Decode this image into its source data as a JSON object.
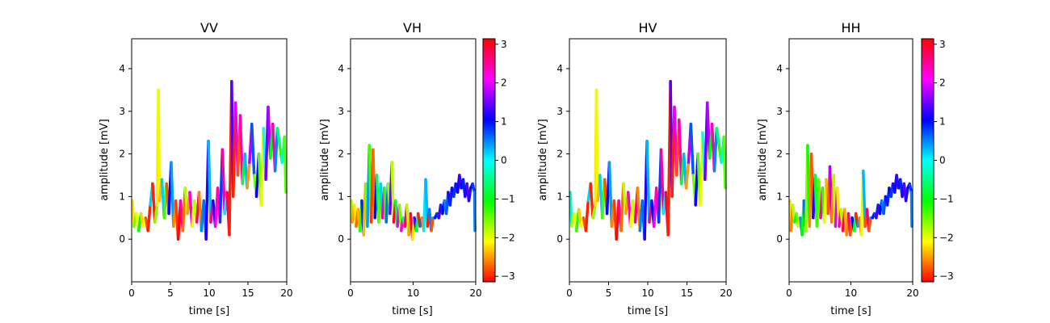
{
  "chart_data": [
    {
      "type": "line",
      "title": "VV",
      "xlabel": "time [s]",
      "ylabel": "amplitude [mV]",
      "xlim": [
        0,
        20
      ],
      "ylim": [
        -1,
        4.7
      ],
      "xticks": [
        "0",
        "5",
        "10",
        "15",
        "20"
      ],
      "yticks": [
        "0",
        "1",
        "2",
        "3",
        "4"
      ],
      "x": [
        0,
        0.3,
        0.6,
        0.9,
        1.2,
        1.5,
        1.8,
        2.1,
        2.4,
        2.7,
        3.0,
        3.3,
        3.45,
        3.6,
        3.9,
        4.2,
        4.5,
        4.8,
        5.1,
        5.4,
        5.7,
        6.0,
        6.3,
        6.6,
        6.9,
        7.2,
        7.5,
        7.8,
        8.1,
        8.4,
        8.7,
        9.0,
        9.3,
        9.6,
        9.9,
        10.2,
        10.5,
        10.8,
        11.1,
        11.4,
        11.7,
        12.0,
        12.3,
        12.6,
        12.9,
        13.1,
        13.4,
        13.7,
        14.0,
        14.3,
        14.6,
        14.9,
        15.2,
        15.5,
        15.8,
        16.1,
        16.4,
        16.7,
        17.0,
        17.3,
        17.6,
        17.9,
        18.2,
        18.5,
        18.8,
        19.1,
        19.4,
        19.7,
        20.0
      ],
      "y": [
        0.9,
        0.3,
        0.6,
        0.2,
        0.6,
        0.3,
        0.5,
        0.2,
        0.8,
        1.3,
        0.4,
        0.8,
        3.5,
        0.9,
        1.4,
        0.5,
        1.3,
        0.6,
        1.8,
        0.3,
        0.9,
        0.0,
        0.9,
        0.2,
        1.2,
        0.6,
        1.1,
        0.3,
        0.9,
        0.4,
        1.1,
        0.2,
        0.9,
        0.0,
        2.3,
        0.4,
        0.9,
        0.3,
        1.2,
        0.4,
        2.1,
        0.6,
        1.1,
        0.1,
        3.7,
        1.0,
        3.2,
        1.5,
        2.9,
        1.3,
        2.0,
        1.2,
        1.8,
        2.7,
        1.5,
        1.0,
        2.0,
        0.8,
        2.6,
        1.4,
        3.1,
        1.9,
        2.7,
        1.6,
        2.6,
        2.2,
        1.8,
        2.4,
        1.1
      ],
      "phase": [
        -2.2,
        -1.5,
        -2.0,
        -1.0,
        -2.3,
        -2.1,
        -2.8,
        -3.0,
        0.2,
        -3.0,
        -1.6,
        -2.2,
        -2.0,
        -2.4,
        0.2,
        -1.3,
        -2.8,
        1.0,
        0.4,
        -2.6,
        -2.9,
        -3.1,
        2.4,
        -2.7,
        -1.8,
        -2.5,
        2.3,
        -2.0,
        -1.8,
        2.6,
        -2.6,
        0.5,
        0.6,
        1.2,
        0.3,
        2.6,
        1.0,
        2.2,
        2.4,
        0.8,
        2.5,
        0.1,
        2.8,
        -3.0,
        1.4,
        -3.0,
        2.0,
        -2.8,
        2.4,
        -0.8,
        0.3,
        -2.5,
        1.8,
        0.7,
        -1.5,
        1.1,
        -1.4,
        -2.0,
        0.0,
        1.5,
        1.8,
        -1.0,
        2.4,
        0.5,
        -0.6,
        -1.2,
        -0.2,
        -1.4,
        -1.0
      ]
    },
    {
      "type": "line",
      "title": "VH",
      "xlabel": "time [s]",
      "ylabel": "amplitude [mV]",
      "xlim": [
        0,
        20
      ],
      "ylim": [
        -1,
        4.7
      ],
      "xticks": [
        "0",
        "10",
        "20"
      ],
      "yticks": [
        "0",
        "1",
        "2",
        "3",
        "4"
      ],
      "x": [
        0,
        0.3,
        0.6,
        0.9,
        1.2,
        1.5,
        1.8,
        2.1,
        2.4,
        2.7,
        3.0,
        3.3,
        3.6,
        3.9,
        4.2,
        4.5,
        4.8,
        5.1,
        5.4,
        5.7,
        6.0,
        6.3,
        6.6,
        6.9,
        7.2,
        7.5,
        7.8,
        8.1,
        8.4,
        8.7,
        9.0,
        9.3,
        9.6,
        9.9,
        10.2,
        10.5,
        10.8,
        11.1,
        11.4,
        11.7,
        12.0,
        12.3,
        12.6,
        12.9,
        13.2,
        13.5,
        13.8,
        14.1,
        14.4,
        14.7,
        15.0,
        15.3,
        15.6,
        15.9,
        16.2,
        16.5,
        16.8,
        17.1,
        17.4,
        17.7,
        18.0,
        18.3,
        18.6,
        18.9,
        19.2,
        19.5,
        19.8,
        20.0
      ],
      "y": [
        0.9,
        0.4,
        0.8,
        0.3,
        0.7,
        0.2,
        0.9,
        0.1,
        1.3,
        0.3,
        2.2,
        0.4,
        2.1,
        0.5,
        1.5,
        0.4,
        1.3,
        0.5,
        1.2,
        0.4,
        1.3,
        0.6,
        1.8,
        0.4,
        0.9,
        0.3,
        0.8,
        0.2,
        0.5,
        0.3,
        0.8,
        0.1,
        0.6,
        0.0,
        0.5,
        0.2,
        0.6,
        0.3,
        0.5,
        0.2,
        1.4,
        0.3,
        0.7,
        0.2,
        0.5,
        0.5,
        0.6,
        0.5,
        0.8,
        0.6,
        0.9,
        0.6,
        1.1,
        0.8,
        1.2,
        1.0,
        1.3,
        1.1,
        1.5,
        1.2,
        1.4,
        1.0,
        1.3,
        0.9,
        1.2,
        1.3,
        1.1,
        0.2
      ],
      "phase": [
        -1.8,
        -2.5,
        -2.2,
        -2.7,
        -2.4,
        -1.2,
        0.9,
        -2.4,
        -1.5,
        0.4,
        -1.3,
        -2.9,
        -2.7,
        1.0,
        -0.7,
        -1.4,
        0.2,
        2.4,
        -1.2,
        0.6,
        -1.6,
        1.5,
        -1.8,
        2.9,
        -0.8,
        2.0,
        -1.5,
        2.3,
        -0.4,
        2.8,
        -1.8,
        -2.5,
        2.8,
        -2.2,
        1.3,
        -0.8,
        -3.0,
        0.6,
        -2.6,
        0.1,
        0.3,
        -3.0,
        0.5,
        -2.8,
        0.4,
        1.0,
        0.8,
        1.3,
        0.9,
        1.1,
        0.5,
        0.7,
        1.2,
        0.9,
        1.0,
        0.8,
        1.2,
        1.1,
        1.3,
        1.0,
        0.9,
        1.2,
        1.4,
        1.2,
        1.1,
        0.8,
        0.5,
        1.0
      ]
    },
    {
      "type": "line",
      "title": "HV",
      "xlabel": "time [s]",
      "ylabel": "amplitude [mV]",
      "xlim": [
        0,
        20
      ],
      "ylim": [
        -1,
        4.7
      ],
      "xticks": [
        "0",
        "5",
        "10",
        "15",
        "20"
      ],
      "yticks": [
        "0",
        "1",
        "2",
        "3",
        "4"
      ],
      "x": [
        0,
        0.3,
        0.6,
        0.9,
        1.2,
        1.5,
        1.8,
        2.1,
        2.4,
        2.7,
        3.0,
        3.3,
        3.45,
        3.6,
        3.9,
        4.2,
        4.5,
        4.8,
        5.1,
        5.4,
        5.7,
        6.0,
        6.3,
        6.6,
        6.9,
        7.2,
        7.5,
        7.8,
        8.1,
        8.4,
        8.7,
        9.0,
        9.3,
        9.6,
        9.9,
        10.2,
        10.5,
        10.8,
        11.1,
        11.4,
        11.7,
        12.0,
        12.3,
        12.6,
        12.9,
        13.1,
        13.4,
        13.7,
        14.0,
        14.3,
        14.6,
        14.9,
        15.2,
        15.5,
        15.8,
        16.1,
        16.4,
        16.7,
        17.0,
        17.3,
        17.6,
        17.9,
        18.2,
        18.5,
        18.8,
        19.1,
        19.4,
        19.7,
        20.0
      ],
      "y": [
        1.1,
        0.3,
        0.6,
        0.2,
        0.7,
        0.3,
        0.5,
        0.2,
        0.9,
        1.3,
        0.5,
        0.8,
        3.5,
        0.9,
        1.5,
        0.5,
        1.4,
        0.6,
        1.8,
        0.3,
        0.9,
        0.0,
        0.9,
        0.2,
        1.3,
        0.6,
        1.1,
        0.3,
        0.9,
        0.4,
        1.2,
        0.2,
        0.9,
        0.0,
        2.3,
        0.4,
        0.9,
        0.3,
        1.2,
        0.4,
        2.1,
        0.6,
        1.1,
        0.1,
        3.7,
        1.0,
        3.1,
        1.5,
        2.8,
        1.3,
        2.0,
        1.2,
        1.8,
        2.7,
        1.5,
        0.8,
        2.0,
        0.8,
        2.5,
        1.4,
        3.2,
        1.9,
        2.7,
        1.6,
        2.6,
        2.2,
        1.8,
        2.4,
        1.2
      ],
      "phase": [
        -0.2,
        -1.8,
        -2.0,
        -1.2,
        -2.3,
        -2.1,
        -2.8,
        -3.0,
        0.2,
        -3.0,
        -1.6,
        -2.2,
        -2.0,
        -2.4,
        0.2,
        -1.3,
        -2.8,
        1.0,
        0.4,
        -2.6,
        -2.9,
        -3.1,
        2.4,
        -2.7,
        -1.8,
        -2.5,
        2.3,
        -2.0,
        -1.8,
        2.6,
        -2.6,
        0.5,
        0.6,
        1.2,
        0.3,
        2.6,
        1.0,
        2.2,
        2.4,
        0.8,
        2.5,
        0.1,
        2.8,
        -3.0,
        1.4,
        -3.0,
        2.0,
        -2.8,
        2.4,
        -0.8,
        0.3,
        -2.5,
        1.8,
        0.7,
        -1.5,
        1.1,
        -1.4,
        -2.0,
        0.0,
        1.5,
        1.8,
        -1.0,
        2.4,
        0.5,
        -0.6,
        -1.2,
        -0.2,
        -1.4,
        -1.0
      ]
    },
    {
      "type": "line",
      "title": "HH",
      "xlabel": "time [s]",
      "ylabel": "amplitude [mV]",
      "xlim": [
        0,
        20
      ],
      "ylim": [
        -1,
        4.7
      ],
      "xticks": [
        "0",
        "10",
        "20"
      ],
      "yticks": [
        "0",
        "1",
        "2",
        "3",
        "4"
      ],
      "x": [
        0,
        0.3,
        0.6,
        0.9,
        1.2,
        1.5,
        1.8,
        2.1,
        2.4,
        2.7,
        3.0,
        3.3,
        3.6,
        3.9,
        4.2,
        4.5,
        4.8,
        5.1,
        5.4,
        5.7,
        6.0,
        6.3,
        6.6,
        6.9,
        7.2,
        7.5,
        7.8,
        8.1,
        8.4,
        8.7,
        9.0,
        9.3,
        9.6,
        9.9,
        10.2,
        10.5,
        10.8,
        11.1,
        11.4,
        11.7,
        12.0,
        12.3,
        12.6,
        12.9,
        13.2,
        13.5,
        13.8,
        14.1,
        14.4,
        14.7,
        15.0,
        15.3,
        15.6,
        15.9,
        16.2,
        16.5,
        16.8,
        17.1,
        17.4,
        17.7,
        18.0,
        18.3,
        18.6,
        18.9,
        19.2,
        19.5,
        19.8,
        20.0
      ],
      "y": [
        0.9,
        0.2,
        0.8,
        0.4,
        0.6,
        0.3,
        0.5,
        0.1,
        0.9,
        0.2,
        2.2,
        0.3,
        2.0,
        0.5,
        1.5,
        0.3,
        1.4,
        0.5,
        1.2,
        0.4,
        1.4,
        0.6,
        1.7,
        0.4,
        1.5,
        0.3,
        1.2,
        0.3,
        0.7,
        0.2,
        0.7,
        0.1,
        0.6,
        0.1,
        0.5,
        0.2,
        0.6,
        0.3,
        0.5,
        0.1,
        1.6,
        0.3,
        0.7,
        0.2,
        0.5,
        0.5,
        0.6,
        0.5,
        0.8,
        0.6,
        0.9,
        0.6,
        1.0,
        0.8,
        1.2,
        1.0,
        1.3,
        1.1,
        1.5,
        1.2,
        1.4,
        1.0,
        1.3,
        0.9,
        1.2,
        1.3,
        1.1,
        0.3
      ],
      "phase": [
        -2.2,
        -2.6,
        -1.8,
        -1.0,
        -1.5,
        -2.2,
        0.4,
        -1.0,
        0.6,
        -1.6,
        -1.1,
        -2.6,
        -2.8,
        1.2,
        -0.8,
        -1.3,
        -1.5,
        2.4,
        -1.2,
        -2.0,
        -2.4,
        -2.8,
        1.8,
        -2.6,
        -1.8,
        2.0,
        -2.2,
        2.4,
        -1.8,
        2.8,
        -2.4,
        -2.6,
        2.6,
        -2.8,
        1.0,
        -0.8,
        -3.0,
        0.4,
        -2.6,
        -2.0,
        0.3,
        -2.8,
        2.7,
        -2.8,
        0.4,
        1.0,
        0.8,
        1.3,
        0.9,
        1.1,
        0.5,
        0.7,
        1.2,
        0.9,
        1.0,
        0.8,
        1.2,
        1.1,
        1.3,
        1.0,
        0.9,
        1.2,
        1.4,
        1.2,
        1.1,
        0.8,
        0.5,
        1.0
      ]
    }
  ],
  "colorbar": {
    "ticks": [
      "3",
      "2",
      "1",
      "0",
      "−1",
      "−2",
      "−3"
    ],
    "tick_values": [
      3,
      2,
      1,
      0,
      -1,
      -2,
      -3
    ],
    "range": [
      -3.1416,
      3.1416
    ],
    "colormap": "hsv"
  }
}
